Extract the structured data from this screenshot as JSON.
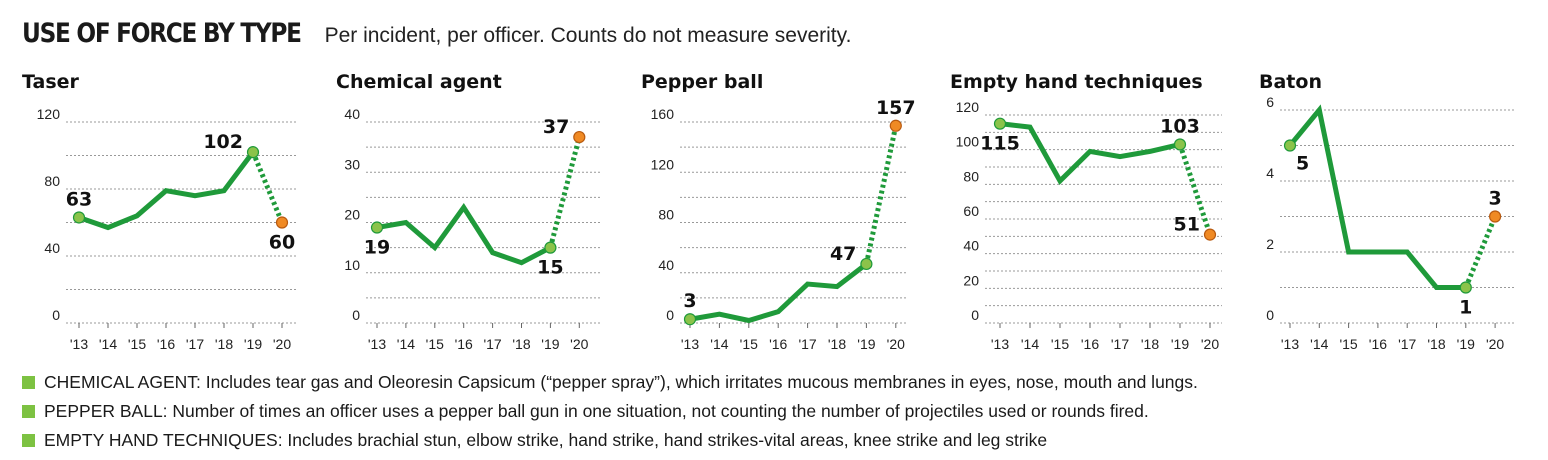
{
  "header": {
    "title": "USE OF FORCE BY TYPE",
    "subtitle": "Per incident, per officer. Counts do not measure severity."
  },
  "colors": {
    "line": "#1f9a3a",
    "start_point": "#8bc34a",
    "end_point": "#f08a24",
    "grid": "#999999",
    "swatch": "#7dc242"
  },
  "chart_data": [
    {
      "type": "line",
      "title": "Taser",
      "x": [
        "'13",
        "'14",
        "'15",
        "'16",
        "'17",
        "'18",
        "'19",
        "'20"
      ],
      "values": [
        63,
        57,
        64,
        79,
        76,
        79,
        102,
        60
      ],
      "ylim": [
        0,
        120
      ],
      "yticks": [
        0,
        40,
        80,
        120
      ],
      "grid_step": 20,
      "labels": [
        {
          "index": 0,
          "text": "63",
          "pos": "above"
        },
        {
          "index": 6,
          "text": "102",
          "pos": "left"
        },
        {
          "index": 7,
          "text": "60",
          "pos": "below"
        }
      ]
    },
    {
      "type": "line",
      "title": "Chemical agent",
      "x": [
        "'13",
        "'14",
        "'15",
        "'16",
        "'17",
        "'18",
        "'19",
        "'20"
      ],
      "values": [
        19,
        20,
        15,
        23,
        14,
        12,
        15,
        37
      ],
      "ylim": [
        0,
        40
      ],
      "yticks": [
        0,
        10,
        20,
        30,
        40
      ],
      "grid_step": 5,
      "labels": [
        {
          "index": 0,
          "text": "19",
          "pos": "below"
        },
        {
          "index": 6,
          "text": "15",
          "pos": "below"
        },
        {
          "index": 7,
          "text": "37",
          "pos": "left"
        }
      ]
    },
    {
      "type": "line",
      "title": "Pepper ball",
      "x": [
        "'13",
        "'14",
        "'15",
        "'16",
        "'17",
        "'18",
        "'19",
        "'20"
      ],
      "values": [
        3,
        7,
        2,
        9,
        31,
        29,
        47,
        157
      ],
      "ylim": [
        0,
        160
      ],
      "yticks": [
        0,
        40,
        80,
        120,
        160
      ],
      "grid_step": 20,
      "labels": [
        {
          "index": 0,
          "text": "3",
          "pos": "above"
        },
        {
          "index": 6,
          "text": "47",
          "pos": "left"
        },
        {
          "index": 7,
          "text": "157",
          "pos": "above"
        }
      ]
    },
    {
      "type": "line",
      "title": "Empty hand techniques",
      "x": [
        "'13",
        "'14",
        "'15",
        "'16",
        "'17",
        "'18",
        "'19",
        "'20"
      ],
      "values": [
        115,
        113,
        82,
        99,
        96,
        99,
        103,
        51
      ],
      "ylim": [
        0,
        120
      ],
      "yticks": [
        0,
        20,
        40,
        60,
        80,
        100,
        120
      ],
      "grid_step": 10,
      "labels": [
        {
          "index": 0,
          "text": "115",
          "pos": "below"
        },
        {
          "index": 6,
          "text": "103",
          "pos": "above"
        },
        {
          "index": 7,
          "text": "51",
          "pos": "left"
        }
      ]
    },
    {
      "type": "line",
      "title": "Baton",
      "x": [
        "'13",
        "'14",
        "'15",
        "'16",
        "'17",
        "'18",
        "'19",
        "'20"
      ],
      "values": [
        5,
        6,
        2,
        2,
        2,
        1,
        1,
        3
      ],
      "ylim": [
        0,
        6
      ],
      "yticks": [
        0,
        2,
        4,
        6
      ],
      "grid_step": 1,
      "labels": [
        {
          "index": 0,
          "text": "5",
          "pos": "below-right"
        },
        {
          "index": 6,
          "text": "1",
          "pos": "below"
        },
        {
          "index": 7,
          "text": "3",
          "pos": "above"
        }
      ]
    }
  ],
  "notes": [
    "CHEMICAL AGENT: Includes tear gas and Oleoresin Capsicum (“pepper spray”), which irritates mucous membranes in eyes, nose, mouth and lungs.",
    "PEPPER BALL: Number of times an officer uses a pepper ball gun in one situation, not counting the number of projectiles used or rounds fired.",
    "EMPTY HAND TECHNIQUES: Includes brachial stun, elbow strike, hand strike, hand strikes-vital areas, knee strike and leg strike"
  ]
}
